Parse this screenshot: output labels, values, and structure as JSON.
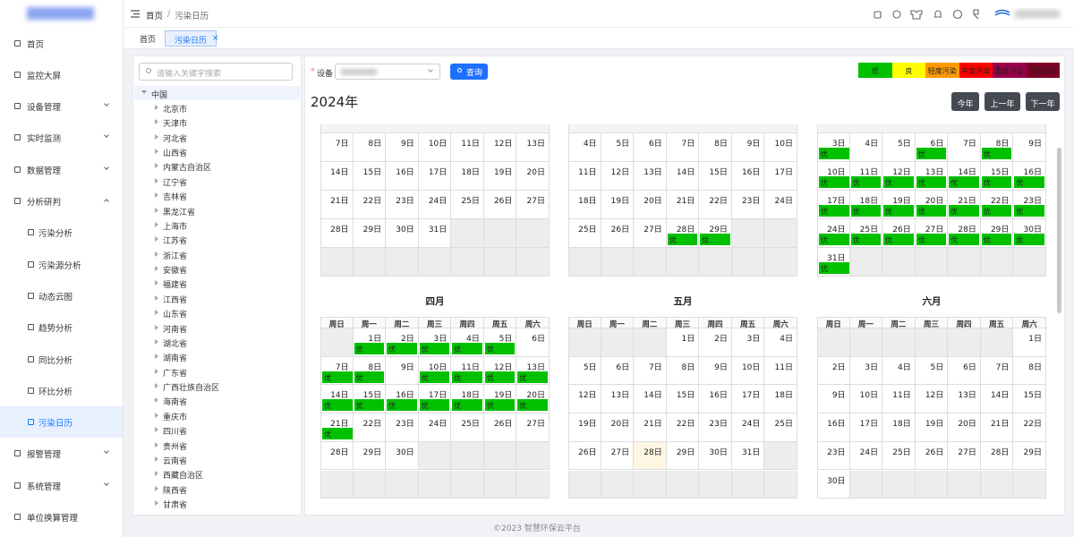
{
  "sidebar": {
    "menu": [
      {
        "label": "首页",
        "collapsible": false
      },
      {
        "label": "监控大屏",
        "collapsible": false
      },
      {
        "label": "设备管理",
        "collapsible": true
      },
      {
        "label": "实时监测",
        "collapsible": true
      },
      {
        "label": "数据管理",
        "collapsible": true
      },
      {
        "label": "分析研判",
        "collapsible": true,
        "expanded": true,
        "children": [
          {
            "label": "污染分析"
          },
          {
            "label": "污染源分析"
          },
          {
            "label": "动态云图"
          },
          {
            "label": "趋势分析"
          },
          {
            "label": "同比分析"
          },
          {
            "label": "环比分析"
          },
          {
            "label": "污染日历",
            "active": true
          }
        ]
      },
      {
        "label": "报警管理",
        "collapsible": true
      },
      {
        "label": "系统管理",
        "collapsible": true
      },
      {
        "label": "单位换算管理",
        "collapsible": false
      }
    ]
  },
  "header": {
    "breadcrumb": [
      "首页",
      "污染日历"
    ],
    "breadcrumb_separator": "/"
  },
  "tabs": [
    {
      "label": "首页"
    },
    {
      "label": "污染日历",
      "active": true,
      "close": "×"
    }
  ],
  "tree": {
    "search_placeholder": "请输入关键字搜索",
    "root": "中国",
    "children": [
      "北京市",
      "天津市",
      "河北省",
      "山西省",
      "内蒙古自治区",
      "辽宁省",
      "吉林省",
      "黑龙江省",
      "上海市",
      "江苏省",
      "浙江省",
      "安徽省",
      "福建省",
      "江西省",
      "山东省",
      "河南省",
      "湖北省",
      "湖南省",
      "广东省",
      "广西壮族自治区",
      "海南省",
      "重庆市",
      "四川省",
      "贵州省",
      "云南省",
      "西藏自治区",
      "陕西省",
      "甘肃省"
    ]
  },
  "form": {
    "required_mark": "*",
    "device_label": "设备",
    "query_button": "查询"
  },
  "legend": [
    {
      "label": "优",
      "color": "#00c000"
    },
    {
      "label": "良",
      "color": "#ffff00"
    },
    {
      "label": "轻度污染",
      "color": "#ff9900"
    },
    {
      "label": "中度污染",
      "color": "#ff0000"
    },
    {
      "label": "重度污染",
      "color": "#99004c"
    },
    {
      "label": "严重污染",
      "color": "#7e0023"
    }
  ],
  "calendar": {
    "year_label": "2024年",
    "buttons": [
      "今年",
      "上一年",
      "下一年"
    ],
    "weekdays": [
      "周日",
      "周一",
      "周二",
      "周三",
      "周四",
      "周五",
      "周六"
    ],
    "months": [
      {
        "weeks": [
          [
            {
              "day": "7日"
            },
            {
              "day": "8日"
            },
            {
              "day": "9日"
            },
            {
              "day": "10日"
            },
            {
              "day": "11日"
            },
            {
              "day": "12日"
            },
            {
              "day": "13日"
            }
          ],
          [
            {
              "day": "14日"
            },
            {
              "day": "15日"
            },
            {
              "day": "16日"
            },
            {
              "day": "17日"
            },
            {
              "day": "18日"
            },
            {
              "day": "19日"
            },
            {
              "day": "20日"
            }
          ],
          [
            {
              "day": "21日"
            },
            {
              "day": "22日"
            },
            {
              "day": "23日"
            },
            {
              "day": "24日"
            },
            {
              "day": "25日"
            },
            {
              "day": "26日"
            },
            {
              "day": "27日"
            }
          ],
          [
            {
              "day": "28日"
            },
            {
              "day": "29日"
            },
            {
              "day": "30日"
            },
            {
              "day": "31日"
            },
            null,
            null,
            null
          ],
          [
            null,
            null,
            null,
            null,
            null,
            null,
            null
          ]
        ]
      },
      {
        "weeks": [
          [
            {
              "day": "4日"
            },
            {
              "day": "5日"
            },
            {
              "day": "6日"
            },
            {
              "day": "7日"
            },
            {
              "day": "8日"
            },
            {
              "day": "9日"
            },
            {
              "day": "10日"
            }
          ],
          [
            {
              "day": "11日"
            },
            {
              "day": "12日"
            },
            {
              "day": "13日"
            },
            {
              "day": "14日"
            },
            {
              "day": "15日"
            },
            {
              "day": "16日"
            },
            {
              "day": "17日"
            }
          ],
          [
            {
              "day": "18日"
            },
            {
              "day": "19日"
            },
            {
              "day": "20日"
            },
            {
              "day": "21日"
            },
            {
              "day": "22日"
            },
            {
              "day": "23日"
            },
            {
              "day": "24日"
            }
          ],
          [
            {
              "day": "25日"
            },
            {
              "day": "26日"
            },
            {
              "day": "27日"
            },
            {
              "day": "28日",
              "level": "优"
            },
            {
              "day": "29日",
              "level": "优"
            },
            null,
            null
          ],
          [
            null,
            null,
            null,
            null,
            null,
            null,
            null
          ]
        ]
      },
      {
        "weeks": [
          [
            {
              "day": "3日",
              "level": "优"
            },
            {
              "day": "4日"
            },
            {
              "day": "5日"
            },
            {
              "day": "6日",
              "level": "优"
            },
            {
              "day": "7日"
            },
            {
              "day": "8日",
              "level": "优"
            },
            {
              "day": "9日"
            }
          ],
          [
            {
              "day": "10日",
              "level": "优"
            },
            {
              "day": "11日",
              "level": "优"
            },
            {
              "day": "12日",
              "level": "优"
            },
            {
              "day": "13日",
              "level": "优"
            },
            {
              "day": "14日",
              "level": "优"
            },
            {
              "day": "15日",
              "level": "优"
            },
            {
              "day": "16日",
              "level": "优"
            }
          ],
          [
            {
              "day": "17日",
              "level": "优"
            },
            {
              "day": "18日",
              "level": "优"
            },
            {
              "day": "19日",
              "level": "优"
            },
            {
              "day": "20日",
              "level": "优"
            },
            {
              "day": "21日",
              "level": "优"
            },
            {
              "day": "22日",
              "level": "优"
            },
            {
              "day": "23日",
              "level": "优"
            }
          ],
          [
            {
              "day": "24日",
              "level": "优"
            },
            {
              "day": "25日",
              "level": "优"
            },
            {
              "day": "26日",
              "level": "优"
            },
            {
              "day": "27日",
              "level": "优"
            },
            {
              "day": "28日",
              "level": "优"
            },
            {
              "day": "29日",
              "level": "优"
            },
            {
              "day": "30日",
              "level": "优"
            }
          ],
          [
            {
              "day": "31日",
              "level": "优"
            },
            null,
            null,
            null,
            null,
            null,
            null
          ]
        ]
      },
      {
        "title": "四月",
        "weeks": [
          [
            null,
            {
              "day": "1日",
              "level": "优"
            },
            {
              "day": "2日",
              "level": "优"
            },
            {
              "day": "3日",
              "level": "优"
            },
            {
              "day": "4日",
              "level": "优"
            },
            {
              "day": "5日",
              "level": "优"
            },
            {
              "day": "6日"
            }
          ],
          [
            {
              "day": "7日",
              "level": "优"
            },
            {
              "day": "8日",
              "level": "优"
            },
            {
              "day": "9日"
            },
            {
              "day": "10日",
              "level": "优"
            },
            {
              "day": "11日",
              "level": "优"
            },
            {
              "day": "12日",
              "level": "优"
            },
            {
              "day": "13日",
              "level": "优"
            }
          ],
          [
            {
              "day": "14日",
              "level": "优"
            },
            {
              "day": "15日",
              "level": "优"
            },
            {
              "day": "16日",
              "level": "优"
            },
            {
              "day": "17日",
              "level": "优"
            },
            {
              "day": "18日",
              "level": "优"
            },
            {
              "day": "19日",
              "level": "优"
            },
            {
              "day": "20日",
              "level": "优"
            }
          ],
          [
            {
              "day": "21日",
              "level": "优"
            },
            {
              "day": "22日"
            },
            {
              "day": "23日"
            },
            {
              "day": "24日"
            },
            {
              "day": "25日"
            },
            {
              "day": "26日"
            },
            {
              "day": "27日"
            }
          ],
          [
            {
              "day": "28日"
            },
            {
              "day": "29日"
            },
            {
              "day": "30日"
            },
            null,
            null,
            null,
            null
          ],
          [
            null,
            null,
            null,
            null,
            null,
            null,
            null
          ]
        ]
      },
      {
        "title": "五月",
        "weeks": [
          [
            null,
            null,
            null,
            {
              "day": "1日"
            },
            {
              "day": "2日"
            },
            {
              "day": "3日"
            },
            {
              "day": "4日"
            }
          ],
          [
            {
              "day": "5日"
            },
            {
              "day": "6日"
            },
            {
              "day": "7日"
            },
            {
              "day": "8日"
            },
            {
              "day": "9日"
            },
            {
              "day": "10日"
            },
            {
              "day": "11日"
            }
          ],
          [
            {
              "day": "12日"
            },
            {
              "day": "13日"
            },
            {
              "day": "14日"
            },
            {
              "day": "15日"
            },
            {
              "day": "16日"
            },
            {
              "day": "17日"
            },
            {
              "day": "18日"
            }
          ],
          [
            {
              "day": "19日"
            },
            {
              "day": "20日"
            },
            {
              "day": "21日"
            },
            {
              "day": "22日"
            },
            {
              "day": "23日"
            },
            {
              "day": "24日"
            },
            {
              "day": "25日"
            }
          ],
          [
            {
              "day": "26日"
            },
            {
              "day": "27日"
            },
            {
              "day": "28日",
              "today": true
            },
            {
              "day": "29日"
            },
            {
              "day": "30日"
            },
            {
              "day": "31日"
            },
            null
          ],
          [
            null,
            null,
            null,
            null,
            null,
            null,
            null
          ]
        ]
      },
      {
        "title": "六月",
        "weeks": [
          [
            null,
            null,
            null,
            null,
            null,
            null,
            {
              "day": "1日"
            }
          ],
          [
            {
              "day": "2日"
            },
            {
              "day": "3日"
            },
            {
              "day": "4日"
            },
            {
              "day": "5日"
            },
            {
              "day": "6日"
            },
            {
              "day": "7日"
            },
            {
              "day": "8日"
            }
          ],
          [
            {
              "day": "9日"
            },
            {
              "day": "10日"
            },
            {
              "day": "11日"
            },
            {
              "day": "12日"
            },
            {
              "day": "13日"
            },
            {
              "day": "14日"
            },
            {
              "day": "15日"
            }
          ],
          [
            {
              "day": "16日"
            },
            {
              "day": "17日"
            },
            {
              "day": "18日"
            },
            {
              "day": "19日"
            },
            {
              "day": "20日"
            },
            {
              "day": "21日"
            },
            {
              "day": "22日"
            }
          ],
          [
            {
              "day": "23日"
            },
            {
              "day": "24日"
            },
            {
              "day": "25日"
            },
            {
              "day": "26日"
            },
            {
              "day": "27日"
            },
            {
              "day": "28日"
            },
            {
              "day": "29日"
            }
          ],
          [
            {
              "day": "30日"
            },
            null,
            null,
            null,
            null,
            null,
            null
          ]
        ]
      }
    ]
  },
  "footer": "©2023 智慧环保云平台"
}
